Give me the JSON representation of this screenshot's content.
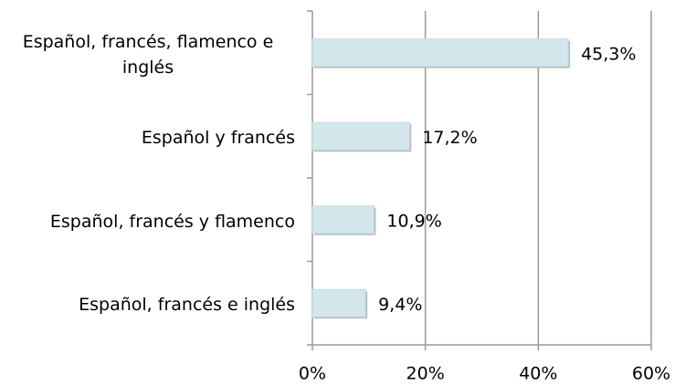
{
  "chart_data": {
    "type": "bar",
    "orientation": "horizontal",
    "categories": [
      "Español, francés, flamenco e inglés",
      "Español y francés",
      "Español, francés y flamenco",
      "Español, francés e inglés"
    ],
    "values": [
      45.3,
      17.2,
      10.9,
      9.4
    ],
    "value_labels": [
      "45,3%",
      "17,2%",
      "10,9%",
      "9,4%"
    ],
    "color": "#d3e6ec",
    "xlim": [
      0,
      60
    ],
    "xticks": [
      {
        "value": 0,
        "label": "0%"
      },
      {
        "value": 20,
        "label": "20%"
      },
      {
        "value": 40,
        "label": "40%"
      },
      {
        "value": 60,
        "label": "60%"
      }
    ],
    "grid": true
  }
}
